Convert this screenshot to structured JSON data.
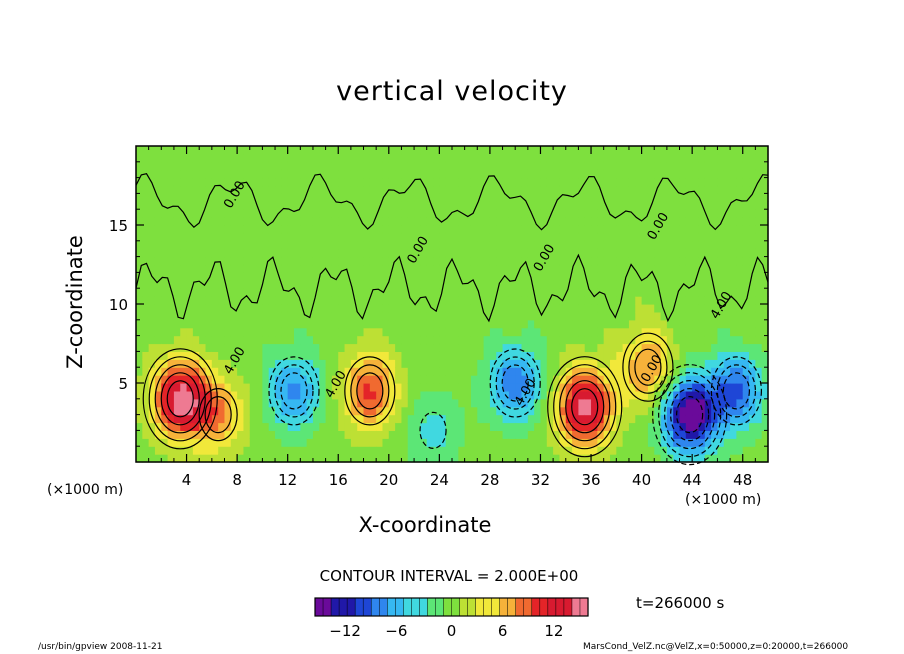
{
  "chart_data": {
    "type": "heatmap",
    "title": "vertical velocity",
    "xlabel": "X-coordinate",
    "ylabel": "Z-coordinate",
    "x_unit_left": "(×1000 m)",
    "x_unit_right": "(×1000 m)",
    "xlim": [
      0,
      50
    ],
    "ylim": [
      0,
      20
    ],
    "xticks": [
      4,
      8,
      12,
      16,
      20,
      24,
      28,
      32,
      36,
      40,
      44,
      48
    ],
    "yticks": [
      5,
      10,
      15
    ],
    "contour_interval_text": "CONTOUR INTERVAL = 2.000E+00",
    "contour_labels": [
      "0.00",
      "0.00",
      "0.00",
      "4.00",
      "4.00",
      "4.00",
      "0.00",
      "0.00",
      "4.00"
    ],
    "colorbar": {
      "range": [
        -16,
        16
      ],
      "ticks": [
        -12,
        -6,
        0,
        6,
        12
      ],
      "colors": [
        "#6a0a9a",
        "#2018a8",
        "#1e46d6",
        "#2f86ee",
        "#36b8f2",
        "#40d8e0",
        "#5ce676",
        "#7ee03e",
        "#bde034",
        "#f1e83a",
        "#f6b23a",
        "#f06a30",
        "#e42428",
        "#d81a30",
        "#ee7a92"
      ]
    },
    "field_centers": [
      {
        "x": 3.5,
        "z": 4,
        "value": 15
      },
      {
        "x": 18.5,
        "z": 4.5,
        "value": 10
      },
      {
        "x": 35.5,
        "z": 3.5,
        "value": 15
      },
      {
        "x": 12.5,
        "z": 4.5,
        "value": -8
      },
      {
        "x": 30,
        "z": 5,
        "value": -9
      },
      {
        "x": 43.8,
        "z": 3,
        "value": -16
      },
      {
        "x": 47.5,
        "z": 4.5,
        "value": -10
      },
      {
        "x": 23.5,
        "z": 2,
        "value": -4
      },
      {
        "x": 40.5,
        "z": 6,
        "value": 8
      },
      {
        "x": 6.5,
        "z": 3,
        "value": 7
      }
    ]
  },
  "time_label": "t=266000 s",
  "footer_left": "/usr/bin/gpview   2008-11-21",
  "footer_right": "MarsCond_VelZ.nc@VelZ,x=0:50000,z=0:20000,t=266000"
}
